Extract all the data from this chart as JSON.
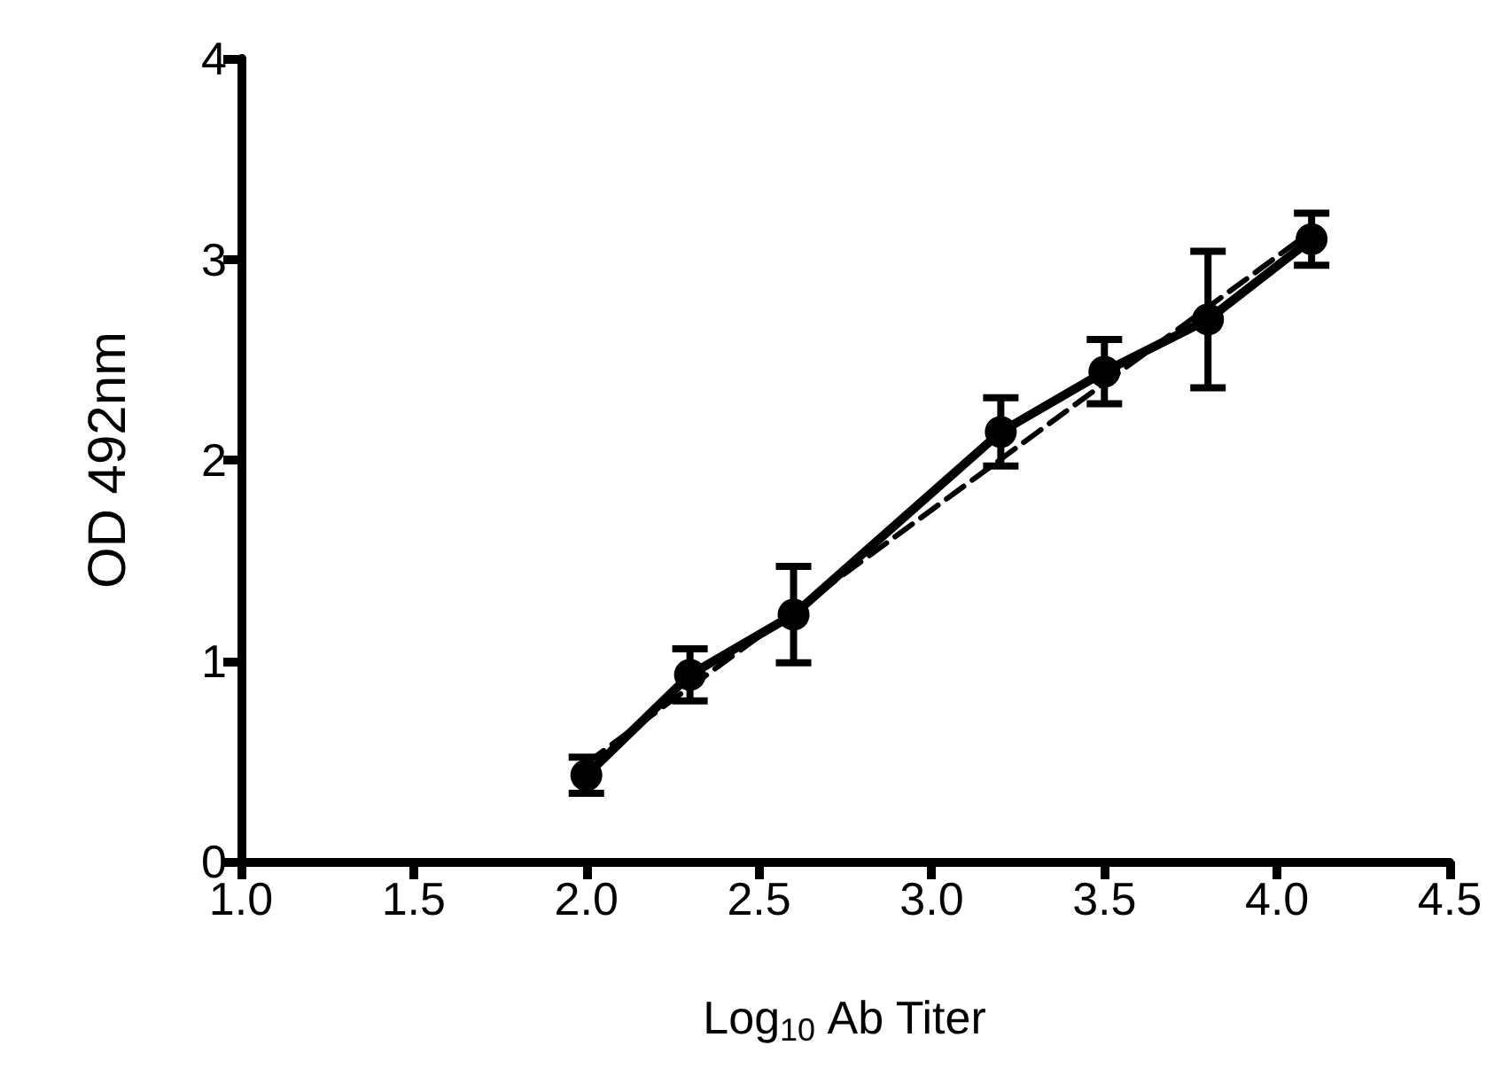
{
  "chart_data": {
    "type": "line",
    "xlabel": "Log$_{10}$ Ab Titer",
    "ylabel": "OD 492nm",
    "x": [
      2.0,
      2.3,
      2.6,
      3.2,
      3.5,
      3.8,
      4.1
    ],
    "series": [
      {
        "color": "#000000",
        "values": [
          0.43,
          0.93,
          1.23,
          2.14,
          2.44,
          2.7,
          3.1
        ],
        "errors": [
          0.09,
          0.13,
          0.24,
          0.17,
          0.16,
          0.34,
          0.13
        ],
        "marker": "circle",
        "line_style": "solid"
      },
      {
        "type": "line",
        "color": "#000000",
        "x": [
          2.0,
          4.1
        ],
        "values": [
          0.49,
          3.14
        ],
        "marker": "none",
        "line_style": "dashed"
      }
    ],
    "xlim": [
      1.0,
      4.5
    ],
    "xticks": [
      {
        "value": 1.0,
        "label": "1.0"
      },
      {
        "value": 1.5,
        "label": "1.5"
      },
      {
        "value": 2.0,
        "label": "2.0"
      },
      {
        "value": 2.5,
        "label": "2.5"
      },
      {
        "value": 3.0,
        "label": "3.0"
      },
      {
        "value": 3.5,
        "label": "3.5"
      },
      {
        "value": 4.0,
        "label": "4.0"
      },
      {
        "value": 4.5,
        "label": "4.5"
      }
    ],
    "ylim": [
      0,
      4
    ],
    "yticks": [
      0,
      1,
      2,
      3,
      4
    ],
    "grid": false
  }
}
